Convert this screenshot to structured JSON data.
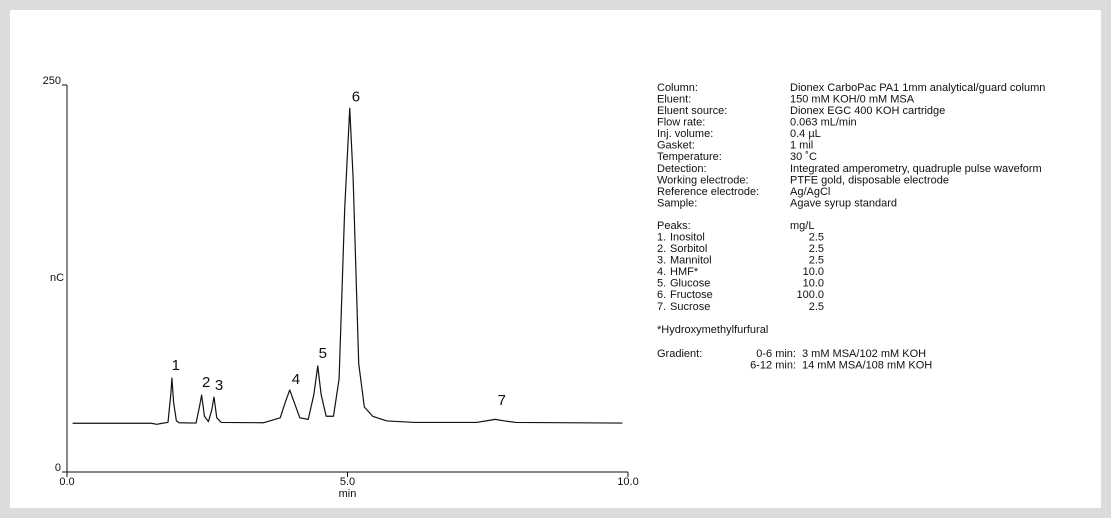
{
  "chart_data": {
    "type": "line",
    "ylabel": "nC",
    "xlabel": "min",
    "xlim": [
      0,
      10
    ],
    "ylim": [
      0,
      250
    ],
    "xticks": [
      {
        "value": 0,
        "label": "0.0"
      },
      {
        "value": 5,
        "label": "5.0"
      },
      {
        "value": 10,
        "label": "10.0"
      }
    ],
    "yticks": [
      0,
      250
    ],
    "grid": false,
    "series": [
      {
        "color": "#111111",
        "x": [
          0.1,
          1.5,
          1.6,
          1.7,
          1.8,
          1.85,
          1.87,
          1.9,
          1.95,
          2.0,
          2.3,
          2.36,
          2.4,
          2.45,
          2.52,
          2.58,
          2.62,
          2.67,
          2.75,
          3.5,
          3.8,
          3.9,
          3.97,
          4.05,
          4.15,
          4.3,
          4.4,
          4.47,
          4.53,
          4.62,
          4.75,
          4.85,
          4.95,
          5.04,
          5.1,
          5.2,
          5.3,
          5.45,
          5.7,
          6.2,
          7.3,
          7.5,
          7.63,
          7.8,
          8.0,
          9.9
        ],
        "values": [
          31.5,
          31.5,
          30.8,
          31.5,
          32,
          50,
          60.7,
          45,
          33,
          31.8,
          31.6,
          42,
          49.7,
          36,
          32.5,
          40,
          48.4,
          35,
          32,
          31.8,
          35,
          46,
          53,
          45,
          35,
          34,
          50,
          68.5,
          50,
          36,
          36,
          60,
          170,
          235,
          190,
          70,
          42,
          36,
          33,
          32,
          32,
          33.2,
          34,
          33,
          32,
          31.6
        ]
      }
    ],
    "annotations": [
      {
        "text": "1",
        "x": 1.94,
        "y": 68.5
      },
      {
        "text": "2",
        "x": 2.48,
        "y": 57.5
      },
      {
        "text": "3",
        "x": 2.71,
        "y": 55.6
      },
      {
        "text": "4",
        "x": 4.08,
        "y": 59.4
      },
      {
        "text": "5",
        "x": 4.56,
        "y": 76.2
      },
      {
        "text": "6",
        "x": 5.15,
        "y": 242
      },
      {
        "text": "7",
        "x": 7.75,
        "y": 45.9
      }
    ]
  },
  "conditions": [
    [
      "Column:",
      "Dionex CarboPac PA1 1mm analytical/guard column"
    ],
    [
      "Eluent:",
      "150 mM KOH/0 mM MSA"
    ],
    [
      "Eluent source:",
      "Dionex EGC 400 KOH cartridge"
    ],
    [
      "Flow rate:",
      "0.063 mL/min"
    ],
    [
      "Inj. volume:",
      "0.4 µL"
    ],
    [
      "Gasket:",
      "1 mil"
    ],
    [
      "Temperature:",
      "30 ˚C"
    ],
    [
      "Detection:",
      "Integrated amperometry, quadruple pulse waveform"
    ],
    [
      "Working electrode:",
      "PTFE gold, disposable electrode"
    ],
    [
      "Reference electrode:",
      "Ag/AgCl"
    ],
    [
      "Sample:",
      "Agave syrup standard"
    ]
  ],
  "peaks_header": [
    "Peaks:",
    "mg/L"
  ],
  "peaks": [
    [
      "1.",
      "Inositol",
      "2.5"
    ],
    [
      "2.",
      "Sorbitol",
      "2.5"
    ],
    [
      "3.",
      "Mannitol",
      "2.5"
    ],
    [
      "4.",
      "HMF*",
      "10.0"
    ],
    [
      "5.",
      "Glucose",
      "10.0"
    ],
    [
      "6.",
      "Fructose",
      "100.0"
    ],
    [
      "7.",
      "Sucrose",
      "2.5"
    ]
  ],
  "footnote": "*Hydroxymethylfurfural",
  "gradient": {
    "label": "Gradient:",
    "rows": [
      [
        "0-6 min:",
        "3 mM MSA/102 mM KOH"
      ],
      [
        "6-12 min:",
        "14 mM MSA/108 mM KOH"
      ]
    ]
  }
}
